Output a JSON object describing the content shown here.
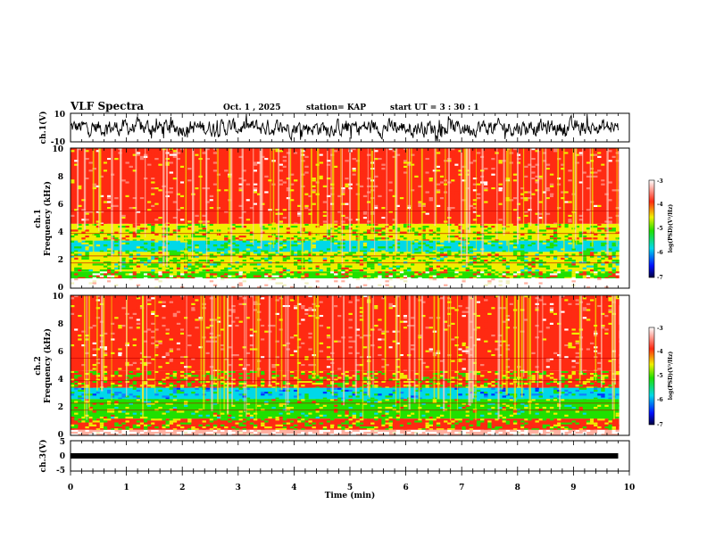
{
  "chart_data": {
    "type": "heatmap",
    "header": {
      "title": "VLF Spectra",
      "date": "Oct. 1 , 2025",
      "station": "station= KAP",
      "start_ut": "start UT = 3 : 30 : 1"
    },
    "x_axis": {
      "label": "Time (min)",
      "range": [
        0,
        10
      ],
      "ticks": [
        "0",
        "1",
        "2",
        "3",
        "4",
        "5",
        "6",
        "7",
        "8",
        "9",
        "10"
      ]
    },
    "panels": [
      {
        "id": "ch1-waveform",
        "type": "line",
        "ylabel": "ch.1(V)",
        "ylim": [
          -10,
          10
        ],
        "tick_labels": [
          "10",
          "-10"
        ]
      },
      {
        "id": "ch1-spectrogram",
        "type": "heatmap",
        "ylabel_line1": "ch.1",
        "ylabel_line2": "Frequency (kHz)",
        "ylim": [
          0,
          10
        ],
        "tick_labels": [
          "0",
          "2",
          "4",
          "6",
          "8",
          "10"
        ],
        "bands_khz": [
          {
            "from": 0,
            "to": 0.7,
            "level": "white"
          },
          {
            "from": 0.7,
            "to": 1.2,
            "level": "low-mixed"
          },
          {
            "from": 1.2,
            "to": 2.6,
            "level": "green"
          },
          {
            "from": 2.6,
            "to": 3.4,
            "level": "cyan-green"
          },
          {
            "from": 3.4,
            "to": 4.6,
            "level": "green-yellow"
          },
          {
            "from": 4.6,
            "to": 10,
            "level": "red"
          }
        ],
        "colorbar": {
          "label": "log(PSD)(V²/Hz)",
          "range": [
            -7,
            -3
          ],
          "tick_labels": [
            "-3",
            "-4",
            "-5",
            "-6",
            "-7"
          ]
        }
      },
      {
        "id": "ch2-spectrogram",
        "type": "heatmap",
        "ylabel_line1": "ch.2",
        "ylabel_line2": "Frequency (kHz)",
        "ylim": [
          0,
          10
        ],
        "tick_labels": [
          "0",
          "2",
          "4",
          "6",
          "8",
          "10"
        ],
        "bands_khz": [
          {
            "from": 0,
            "to": 0.4,
            "level": "white"
          },
          {
            "from": 0.4,
            "to": 1.2,
            "level": "green-yellow"
          },
          {
            "from": 1.2,
            "to": 2.6,
            "level": "green"
          },
          {
            "from": 2.6,
            "to": 3.4,
            "level": "cyan-blue"
          },
          {
            "from": 3.4,
            "to": 4.6,
            "level": "green-yellow"
          },
          {
            "from": 4.6,
            "to": 10,
            "level": "red"
          }
        ],
        "colorbar": {
          "label": "log(PSD)(V²/Hz)",
          "range": [
            -7,
            -3
          ],
          "tick_labels": [
            "-3",
            "-4",
            "-5",
            "-6",
            "-7"
          ]
        }
      },
      {
        "id": "ch3-waveform",
        "type": "line",
        "ylabel": "ch.3(V)",
        "ylim": [
          -5,
          5
        ],
        "tick_labels": [
          "5",
          "0",
          "-5"
        ],
        "trace_level_v": 0,
        "trace_end_min": 9.8
      }
    ],
    "colors": {
      "red": "#ff2a12",
      "yellow": "#f0f000",
      "green": "#20e000",
      "cyan": "#00d8e8",
      "blue": "#0030ff",
      "white": "#ffffff"
    }
  }
}
